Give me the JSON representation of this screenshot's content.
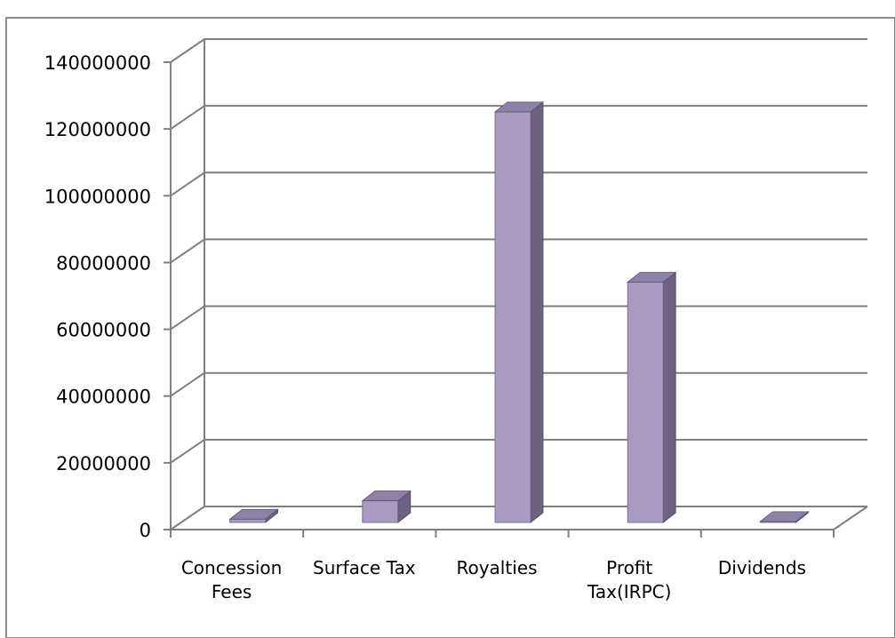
{
  "chart_data": {
    "type": "bar",
    "style": "3d-column",
    "categories": [
      [
        "Concession",
        "Fees"
      ],
      [
        "Surface Tax"
      ],
      [
        "Royalties"
      ],
      [
        "Profit",
        "Tax(IRPC)"
      ],
      [
        "Dividends"
      ]
    ],
    "values": [
      1000000,
      6500000,
      123000000,
      72000000,
      300000
    ],
    "ylim": [
      0,
      140000000
    ],
    "yticks": [
      "0",
      "20000000",
      "40000000",
      "60000000",
      "80000000",
      "100000000",
      "120000000",
      "140000000"
    ],
    "grid": true,
    "legend": "none",
    "colors": {
      "bar_front": "#A89AC2",
      "bar_top": "#8E81A8",
      "bar_side": "#6E6283",
      "grid": "#7f7f7f",
      "axis": "#7f7f7f"
    }
  }
}
